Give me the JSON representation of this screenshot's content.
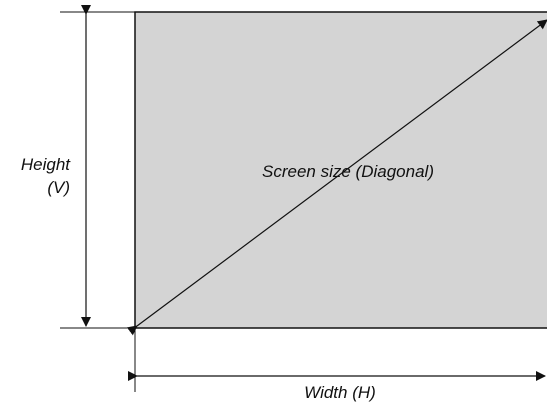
{
  "labels": {
    "height_line1": "Height",
    "height_line2": "(V)",
    "diagonal": "Screen size (Diagonal)",
    "width": "Width (H)"
  },
  "colors": {
    "screen_fill": "#d4d4d4",
    "line": "#111111",
    "background": "#ffffff"
  }
}
